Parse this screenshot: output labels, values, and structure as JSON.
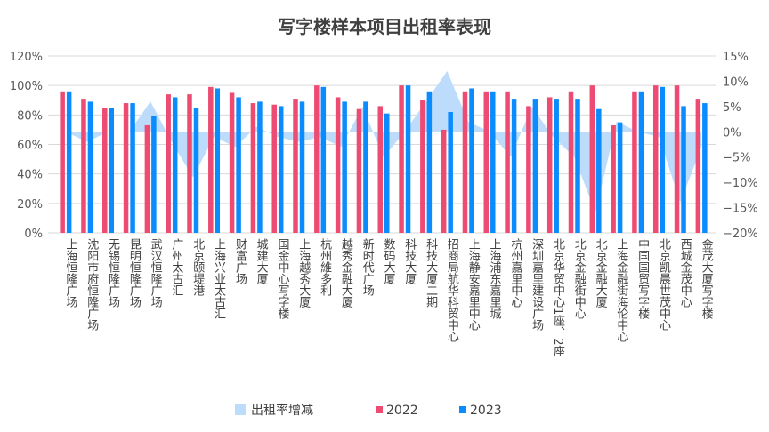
{
  "chart_data": {
    "type": "bar",
    "title": "写字楼样本项目出租率表现",
    "categories": [
      "上海恒隆广场",
      "沈阳市府恒隆广场",
      "无锡恒隆广场",
      "昆明恒隆广场",
      "武汉恒隆广场",
      "广州太古汇",
      "北京颐堤港",
      "上海兴业太古汇",
      "财富广场",
      "城建大厦",
      "国金中心写字楼",
      "上海越秀大厦",
      "杭州維多利",
      "越秀金融大厦",
      "新时代广场",
      "数码大厦",
      "科技大厦",
      "科技大厦二期",
      "招商局航华科贸中心",
      "上海静安嘉里中心",
      "上海浦东嘉里城",
      "杭州嘉里中心",
      "深圳嘉里建设广场",
      "北京华贸中心1座、2座",
      "北京金融街中心",
      "北京金融大厦",
      "上海金融街海伦中心",
      "中国国贸写字楼",
      "北京凯晨世茂中心",
      "西城金茂中心",
      "金茂大厦写字楼"
    ],
    "series": [
      {
        "name": "出租率增减",
        "type": "area",
        "axis": "right",
        "color": "#bddcfb",
        "values": [
          0,
          -2,
          0,
          0,
          6,
          -2,
          -9,
          -1,
          -3,
          1,
          -1,
          -2,
          -1,
          -3,
          5,
          -5,
          0,
          6,
          12,
          2,
          0,
          -5,
          5,
          -1,
          -5,
          -16,
          2,
          0,
          -1,
          -14,
          -3
        ]
      },
      {
        "name": "2022",
        "type": "bar",
        "axis": "left",
        "color": "#ee4b73",
        "values": [
          96,
          91,
          85,
          88,
          73,
          94,
          94,
          99,
          95,
          88,
          87,
          91,
          100,
          92,
          84,
          86,
          100,
          90,
          70,
          96,
          96,
          96,
          86,
          92,
          96,
          100,
          73,
          96,
          100,
          100,
          91
        ]
      },
      {
        "name": "2023",
        "type": "bar",
        "axis": "left",
        "color": "#0a8cff",
        "values": [
          96,
          89,
          85,
          88,
          79,
          92,
          85,
          98,
          92,
          89,
          86,
          89,
          99,
          89,
          89,
          81,
          100,
          96,
          82,
          98,
          96,
          91,
          91,
          91,
          91,
          84,
          75,
          96,
          99,
          86,
          88
        ]
      }
    ],
    "y_left": {
      "min": 0,
      "max": 120,
      "step": 20,
      "ticks": [
        "0%",
        "20%",
        "40%",
        "60%",
        "80%",
        "100%",
        "120%"
      ]
    },
    "y_right": {
      "min": -20,
      "max": 15,
      "step": 5,
      "ticks": [
        "-20%",
        "-15%",
        "-10%",
        "-5%",
        "0%",
        "5%",
        "10%",
        "15%"
      ]
    },
    "grid": true,
    "legend": "bottom"
  }
}
